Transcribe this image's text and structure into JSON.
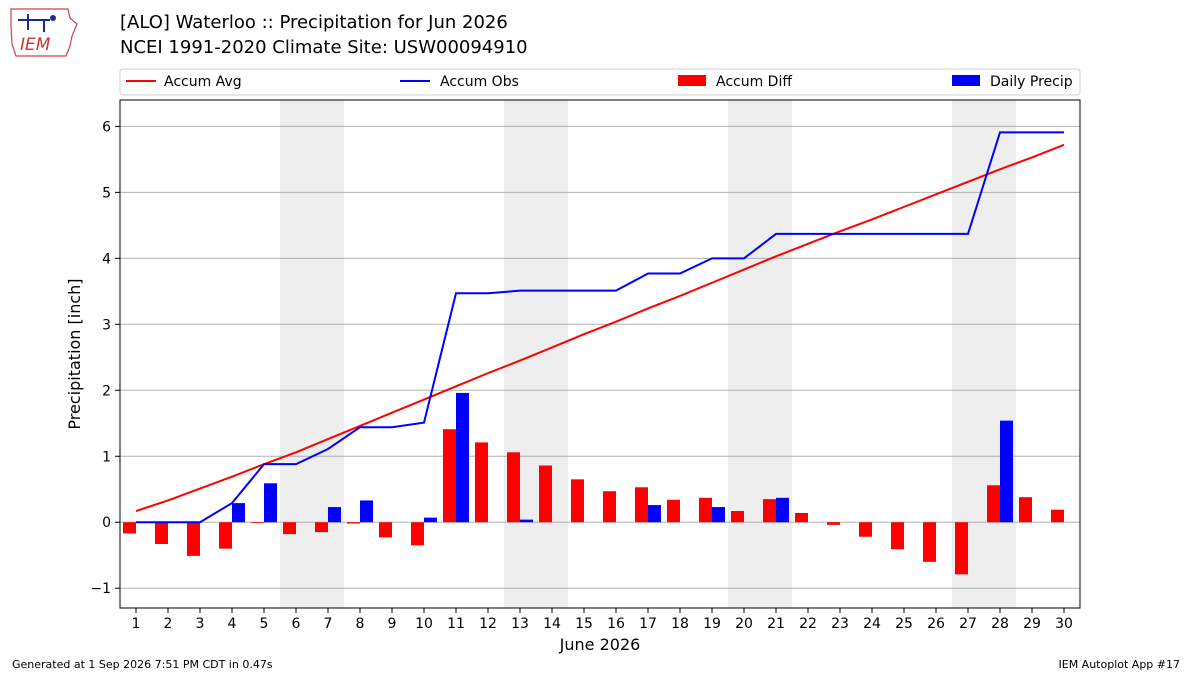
{
  "header": {
    "title_line1": "[ALO] Waterloo :: Precipitation for Jun 2026",
    "title_line2": "NCEI 1991-2020 Climate Site: USW00094910",
    "logo_text": "IEM"
  },
  "footer": {
    "generated": "Generated at 1 Sep 2026 7:51 PM CDT in 0.47s",
    "app": "IEM Autoplot App #17"
  },
  "chart_data": {
    "type": "bar",
    "xlabel": "June 2026",
    "ylabel": "Precipitation [inch]",
    "ylim": [
      -1.3,
      6.4
    ],
    "yticks": [
      -1,
      0,
      1,
      2,
      3,
      4,
      5,
      6
    ],
    "grid": "horizontal",
    "legend_placement": "top, above plot",
    "categories": [
      "1",
      "2",
      "3",
      "4",
      "5",
      "6",
      "7",
      "8",
      "9",
      "10",
      "11",
      "12",
      "13",
      "14",
      "15",
      "16",
      "17",
      "18",
      "19",
      "20",
      "21",
      "22",
      "23",
      "24",
      "25",
      "26",
      "27",
      "28",
      "29",
      "30"
    ],
    "weekend_shading": [
      [
        6,
        7
      ],
      [
        13,
        14
      ],
      [
        20,
        21
      ],
      [
        27,
        28
      ]
    ],
    "colors": {
      "accum_avg": "#ff0000",
      "accum_obs": "#0000ff",
      "accum_diff": "#ff0000",
      "daily_precip": "#0000ff",
      "shade": "#eeeeee",
      "grid": "#b0b0b0"
    },
    "series": [
      {
        "name": "Accum Avg",
        "kind": "line",
        "values": [
          0.17,
          0.33,
          0.51,
          0.69,
          0.88,
          1.06,
          1.26,
          1.46,
          1.66,
          1.86,
          2.06,
          2.26,
          2.45,
          2.65,
          2.85,
          3.04,
          3.24,
          3.43,
          3.63,
          3.83,
          4.03,
          4.22,
          4.41,
          4.59,
          4.78,
          4.97,
          5.16,
          5.35,
          5.53,
          5.72
        ]
      },
      {
        "name": "Accum Obs",
        "kind": "line",
        "values": [
          0.0,
          0.0,
          0.0,
          0.29,
          0.88,
          0.88,
          1.11,
          1.44,
          1.44,
          1.51,
          3.47,
          3.47,
          3.51,
          3.51,
          3.51,
          3.51,
          3.77,
          3.77,
          4.0,
          4.0,
          4.37,
          4.37,
          4.37,
          4.37,
          4.37,
          4.37,
          4.37,
          5.91,
          5.91,
          5.91
        ]
      },
      {
        "name": "Accum Diff",
        "kind": "bar",
        "values": [
          -0.17,
          -0.33,
          -0.51,
          -0.4,
          -0.01,
          -0.18,
          -0.15,
          -0.02,
          -0.23,
          -0.35,
          1.41,
          1.21,
          1.06,
          0.86,
          0.65,
          0.47,
          0.53,
          0.34,
          0.37,
          0.17,
          0.35,
          0.14,
          -0.04,
          -0.22,
          -0.41,
          -0.6,
          -0.79,
          0.56,
          0.38,
          0.19
        ]
      },
      {
        "name": "Daily Precip",
        "kind": "bar",
        "values": [
          0,
          0,
          0,
          0.29,
          0.59,
          0,
          0.23,
          0.33,
          0,
          0.07,
          1.96,
          0,
          0.04,
          0,
          0,
          0,
          0.26,
          0,
          0.23,
          0,
          0.37,
          0,
          0,
          0,
          0,
          0,
          0,
          1.54,
          0,
          0
        ]
      }
    ]
  }
}
